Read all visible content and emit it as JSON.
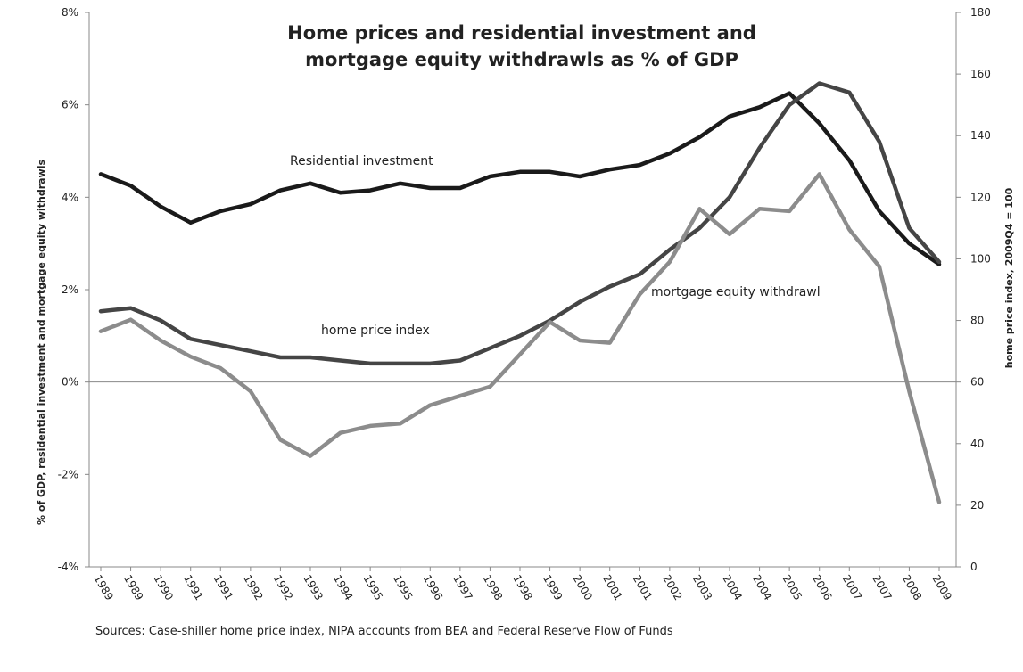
{
  "chart_data": {
    "type": "line",
    "title": "Home prices and residential investment and mortgage equity withdrawls  as % of GDP",
    "y_label": "% of GDP, residential investment and mortgage equity withdrawls",
    "y2_label": "home price index, 2009Q4 = 100",
    "source": "Sources: Case-shiller home price index, NIPA accounts from BEA and Federal Reserve Flow of Funds",
    "annotations": [
      "Residential investment",
      "home price index",
      "mortgage equity withdrawl"
    ],
    "categories": [
      "1989",
      "1989",
      "1990",
      "1991",
      "1991",
      "1992",
      "1992",
      "1993",
      "1994",
      "1995",
      "1995",
      "1996",
      "1997",
      "1998",
      "1998",
      "1999",
      "2000",
      "2001",
      "2001",
      "2002",
      "2003",
      "2004",
      "2004",
      "2005",
      "2006",
      "2007",
      "2007",
      "2008",
      "2009"
    ],
    "ylim": [
      -4,
      8
    ],
    "yticks": [
      {
        "value": -4,
        "label": "-4%"
      },
      {
        "value": -2,
        "label": "-2%"
      },
      {
        "value": 0,
        "label": "0%"
      },
      {
        "value": 2,
        "label": "2%"
      },
      {
        "value": 4,
        "label": "4%"
      },
      {
        "value": 6,
        "label": "6%"
      },
      {
        "value": 8,
        "label": "8%"
      }
    ],
    "y2lim": [
      0,
      180
    ],
    "y2ticks": [
      0,
      20,
      40,
      60,
      80,
      100,
      120,
      140,
      160,
      180
    ],
    "series": [
      {
        "name": "Residential investment",
        "color": "#1a1a1a",
        "values": [
          4.5,
          4.25,
          3.8,
          3.45,
          3.7,
          3.85,
          4.15,
          4.3,
          4.1,
          4.15,
          4.3,
          4.2,
          4.2,
          4.45,
          4.55,
          4.55,
          4.45,
          4.6,
          4.7,
          4.95,
          5.3,
          5.75,
          5.95,
          6.25,
          5.6,
          4.8,
          3.7,
          3.0,
          2.55
        ]
      },
      {
        "name": "home price index",
        "color": "#454545",
        "axis": "y2",
        "values": [
          83,
          84,
          80,
          74,
          72,
          70,
          68,
          68,
          67,
          66,
          66,
          66,
          67,
          71,
          75,
          80,
          86,
          91,
          95,
          103,
          110,
          120,
          136,
          150,
          157,
          154,
          138,
          110,
          99
        ]
      },
      {
        "name": "mortgage equity withdrawl",
        "color": "#8c8c8c",
        "values": [
          1.1,
          1.35,
          0.9,
          0.55,
          0.3,
          -0.2,
          -1.25,
          -1.6,
          -1.1,
          -0.95,
          -0.9,
          -0.5,
          -0.3,
          -0.1,
          0.6,
          1.3,
          0.9,
          0.85,
          1.9,
          2.6,
          3.75,
          3.2,
          3.75,
          3.7,
          4.5,
          3.3,
          2.5,
          -0.2,
          -2.6
        ]
      }
    ]
  }
}
